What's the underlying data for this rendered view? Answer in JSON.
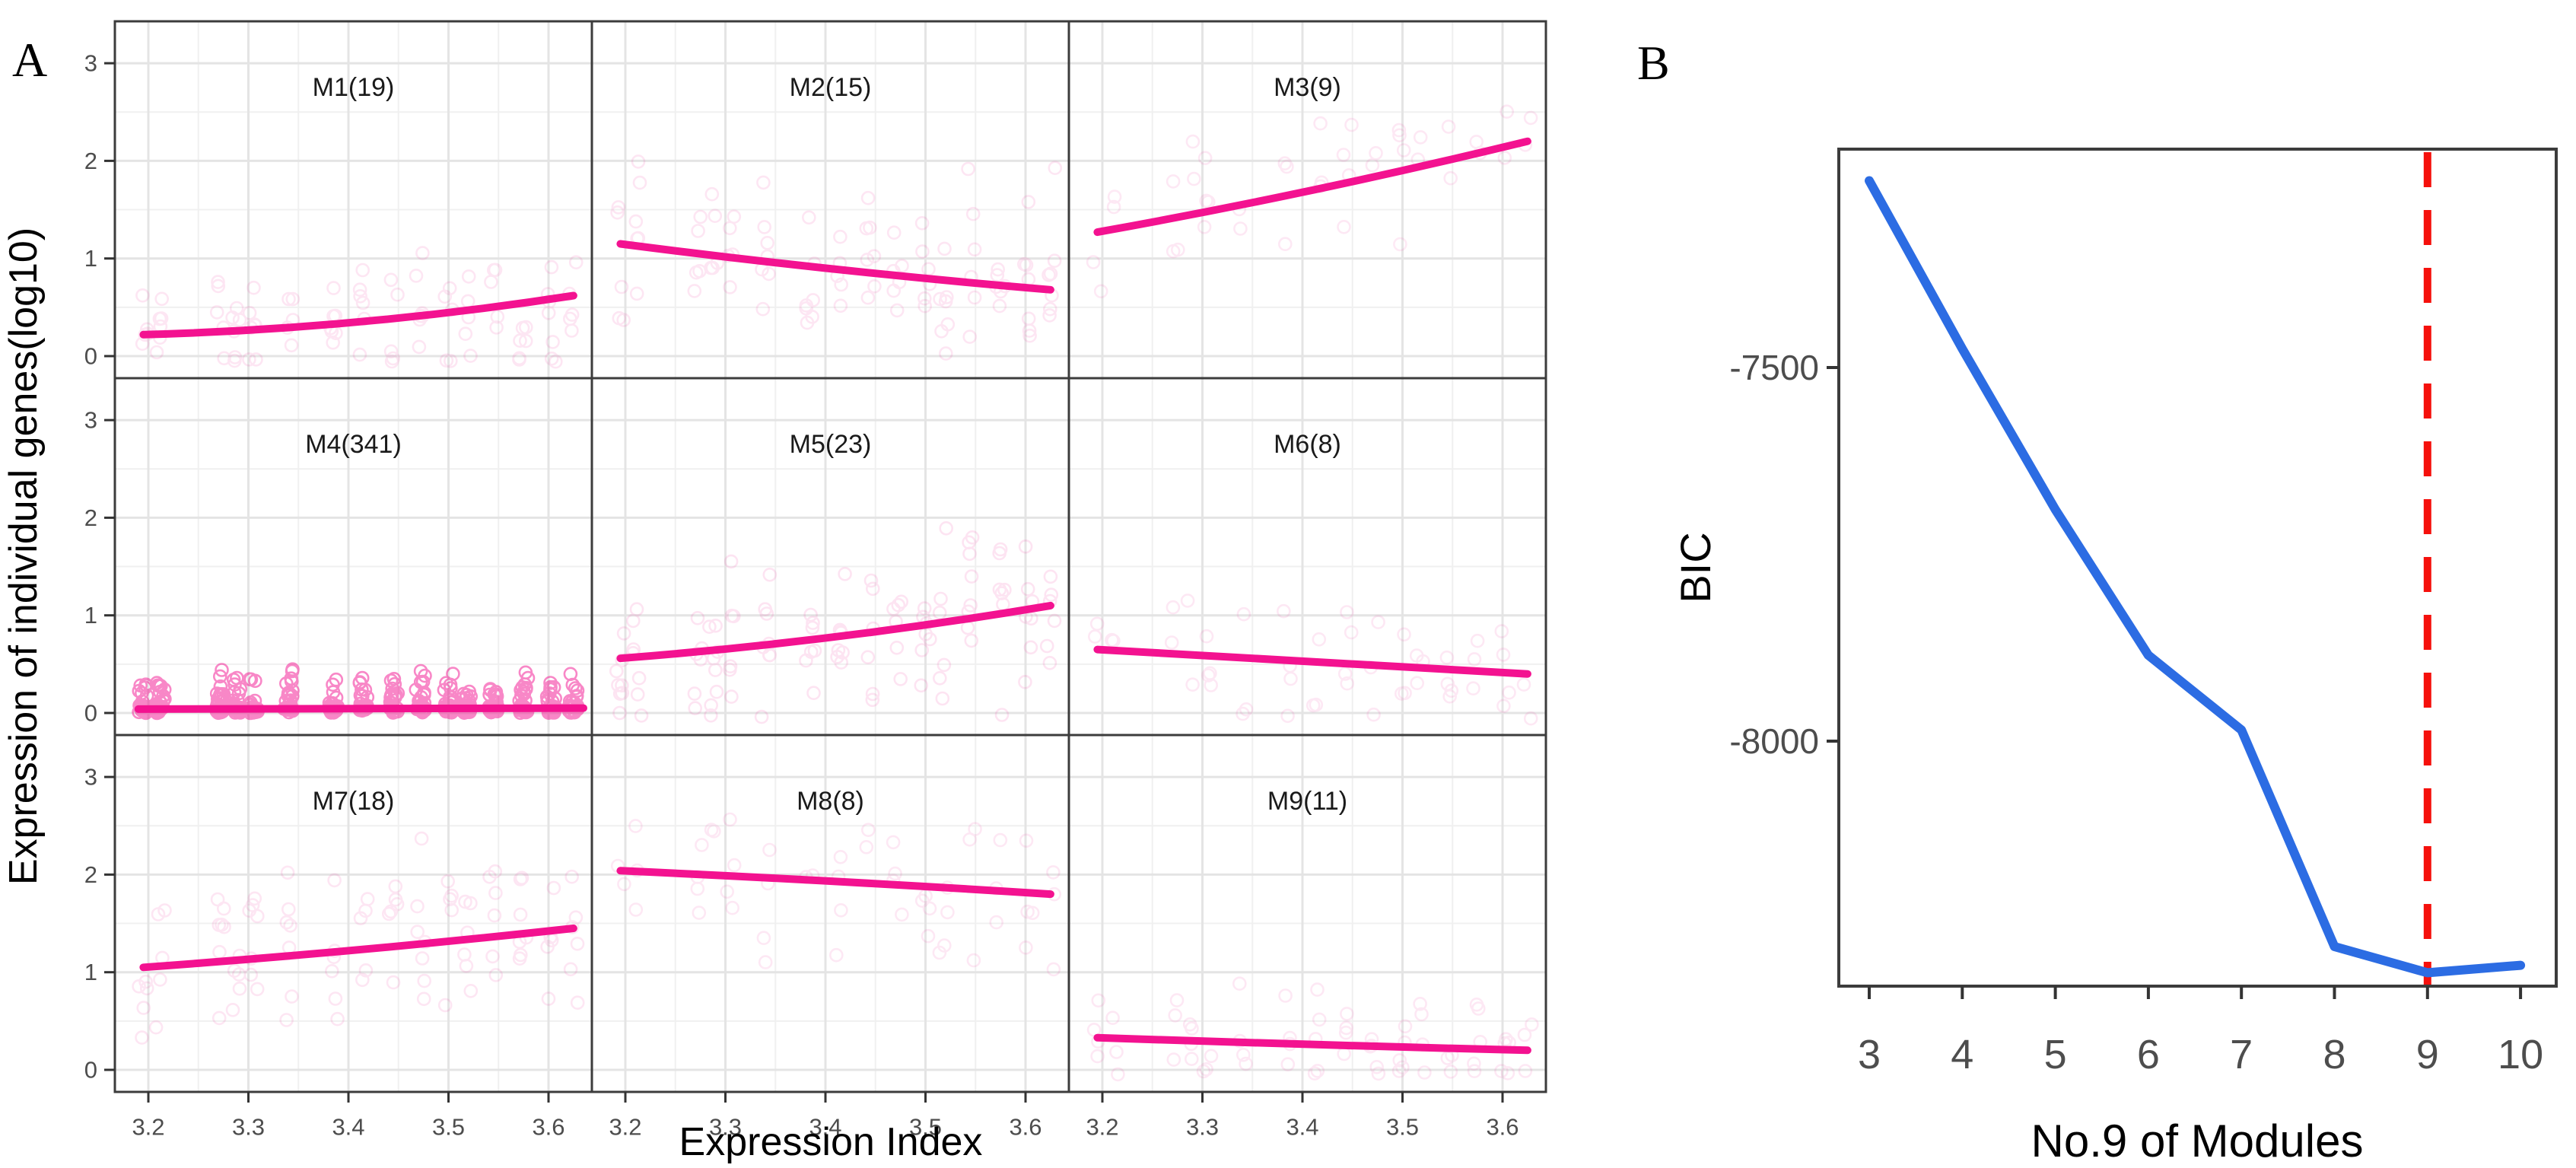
{
  "figure": {
    "panel_a": {
      "label": "A",
      "x_title": "Expression Index",
      "y_title": "Expression of individual genes(log10)"
    },
    "panel_b": {
      "label": "B",
      "x_title": "No.9 of Modules",
      "y_title": "BIC"
    }
  },
  "colors": {
    "pink": "#F31290",
    "blue": "#2C6CE3",
    "red": "#F5100C",
    "frame": "#3C3C3C",
    "grid_major": "#E4E4E4",
    "grid_minor": "#F0F0F0",
    "tick_text": "#4D4D4D",
    "tick_mark": "#333333",
    "panel_bg": "#FFFFFF"
  },
  "chart_data": [
    {
      "type": "scatter",
      "panel": "A",
      "title": "",
      "xlabel": "Expression Index",
      "ylabel": "Expression of individual genes(log10)",
      "xlim": [
        3.167,
        3.643
      ],
      "ylim": [
        -0.22,
        3.43
      ],
      "grid": true,
      "x_tick_values": [
        3.2,
        3.3,
        3.4,
        3.5,
        3.6
      ],
      "x_tick_labels": [
        "3.2",
        "3.3",
        "3.4",
        "3.5",
        "3.6"
      ],
      "x_minor": [
        3.25,
        3.35,
        3.45,
        3.55
      ],
      "y_tick_values": [
        0,
        1,
        2,
        3
      ],
      "y_tick_labels": [
        "0",
        "1",
        "2",
        "3"
      ],
      "y_minor": [
        0.5,
        1.5,
        2.5
      ],
      "sites_x": [
        3.195,
        3.212,
        3.272,
        3.288,
        3.305,
        3.34,
        3.385,
        3.415,
        3.445,
        3.472,
        3.5,
        3.518,
        3.545,
        3.575,
        3.603,
        3.625
      ],
      "facets": [
        {
          "label": "M1(19)",
          "module": "M1",
          "n_genes": 19,
          "trend_x": [
            3.195,
            3.41,
            3.625
          ],
          "trend_y": [
            0.22,
            0.35,
            0.62
          ],
          "points": {
            "per_site": 6,
            "spread": 0.32,
            "min": -0.06,
            "max": 1.45,
            "alpha": 0.1,
            "mode": "trend"
          }
        },
        {
          "label": "M2(15)",
          "module": "M2",
          "n_genes": 15,
          "trend_x": [
            3.195,
            3.41,
            3.625
          ],
          "trend_y": [
            1.15,
            0.89,
            0.68
          ],
          "points": {
            "per_site": 6,
            "spread": 0.42,
            "min": -0.06,
            "max": 2.05,
            "alpha": 0.1,
            "mode": "trend"
          }
        },
        {
          "label": "M3(9)",
          "module": "M3",
          "n_genes": 9,
          "trend_x": [
            3.195,
            3.41,
            3.625
          ],
          "trend_y": [
            1.27,
            1.7,
            2.2
          ],
          "points": {
            "per_site": 3,
            "spread": 0.42,
            "min": 0.25,
            "max": 2.55,
            "alpha": 0.09,
            "mode": "trend"
          }
        },
        {
          "label": "M4(341)",
          "module": "M4",
          "n_genes": 341,
          "trend_x": [
            3.19,
            3.41,
            3.635
          ],
          "trend_y": [
            0.04,
            0.04,
            0.05
          ],
          "points": {
            "per_site": 30,
            "spread": 0.16,
            "min": 0.0,
            "max": 0.85,
            "alpha": 0.5,
            "mode": "floor"
          }
        },
        {
          "label": "M5(23)",
          "module": "M5",
          "n_genes": 23,
          "trend_x": [
            3.195,
            3.41,
            3.625
          ],
          "trend_y": [
            0.56,
            0.78,
            1.1
          ],
          "points": {
            "per_site": 7,
            "spread": 0.38,
            "min": -0.06,
            "max": 2.2,
            "alpha": 0.11,
            "mode": "trend"
          }
        },
        {
          "label": "M6(8)",
          "module": "M6",
          "n_genes": 8,
          "trend_x": [
            3.195,
            3.41,
            3.625
          ],
          "trend_y": [
            0.65,
            0.52,
            0.4
          ],
          "points": {
            "per_site": 3,
            "spread": 0.33,
            "min": -0.06,
            "max": 1.2,
            "alpha": 0.09,
            "mode": "trend"
          }
        },
        {
          "label": "M7(18)",
          "module": "M7",
          "n_genes": 18,
          "trend_x": [
            3.195,
            3.41,
            3.625
          ],
          "trend_y": [
            1.05,
            1.23,
            1.45
          ],
          "points": {
            "per_site": 6,
            "spread": 0.4,
            "min": 0.3,
            "max": 2.4,
            "alpha": 0.1,
            "mode": "trend"
          }
        },
        {
          "label": "M8(8)",
          "module": "M8",
          "n_genes": 8,
          "trend_x": [
            3.195,
            3.41,
            3.625
          ],
          "trend_y": [
            2.04,
            1.93,
            1.8
          ],
          "points": {
            "per_site": 3,
            "spread": 0.45,
            "min": 0.75,
            "max": 2.9,
            "alpha": 0.09,
            "mode": "trend"
          }
        },
        {
          "label": "M9(11)",
          "module": "M9",
          "n_genes": 11,
          "trend_x": [
            3.195,
            3.41,
            3.625
          ],
          "trend_y": [
            0.33,
            0.26,
            0.2
          ],
          "points": {
            "per_site": 4,
            "spread": 0.26,
            "min": -0.06,
            "max": 1.05,
            "alpha": 0.09,
            "mode": "trend"
          }
        }
      ]
    },
    {
      "type": "line",
      "panel": "B",
      "title": "",
      "xlabel": "No.9 of Modules",
      "ylabel": "BIC",
      "grid": false,
      "x": [
        3,
        4,
        5,
        6,
        7,
        8,
        9,
        10
      ],
      "y": [
        -7250,
        -7475,
        -7690,
        -7885,
        -7985,
        -8275,
        -8310,
        -8300
      ],
      "xlim": [
        2.67,
        10.38
      ],
      "ylim": [
        -8330,
        -7200
      ],
      "x_tick_values": [
        3,
        4,
        5,
        6,
        7,
        8,
        9,
        10
      ],
      "x_tick_labels": [
        "3",
        "4",
        "5",
        "6",
        "7",
        "8",
        "9",
        "10"
      ],
      "y_tick_values": [
        -7500,
        -8000
      ],
      "y_tick_labels": [
        "-7500",
        "-8000"
      ],
      "vline": {
        "x": 9,
        "style": "dashed"
      }
    }
  ]
}
